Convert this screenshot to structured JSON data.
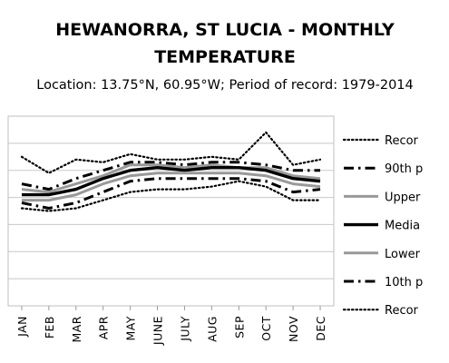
{
  "chart_data": {
    "type": "line",
    "title": "HEWANORRA, ST LUCIA - MONTHLY TEMPERATURE",
    "title_lines": [
      "HEWANORRA, ST LUCIA - MONTHLY",
      "TEMPERATURE"
    ],
    "subtitle": "Location: 13.75°N, 60.95°W; Period of record: 1979-2014",
    "categories": [
      "JAN",
      "FEB",
      "MAR",
      "APR",
      "MAY",
      "JUNE",
      "JULY",
      "AUG",
      "SEP",
      "OCT",
      "NOV",
      "DEC"
    ],
    "xlabel": "",
    "ylabel": "",
    "ylim": [
      0,
      7
    ],
    "yticks": [
      0,
      1,
      2,
      3,
      4,
      5,
      6,
      7
    ],
    "y_tick_labels_visible": false,
    "grid": "horizontal",
    "legend_position": "right",
    "series": [
      {
        "name": "Recor",
        "style": "dotted",
        "color": "#000000",
        "values": [
          5.5,
          4.9,
          5.4,
          5.3,
          5.6,
          5.4,
          5.4,
          5.5,
          5.4,
          6.4,
          5.2,
          5.4
        ]
      },
      {
        "name": "90th p",
        "style": "dashdot",
        "color": "#000000",
        "values": [
          4.5,
          4.3,
          4.7,
          5.0,
          5.3,
          5.3,
          5.2,
          5.3,
          5.3,
          5.2,
          5.0,
          5.0
        ]
      },
      {
        "name": "Upper",
        "style": "solid",
        "color": "#999999",
        "values": [
          4.3,
          4.2,
          4.5,
          4.8,
          5.2,
          5.2,
          5.1,
          5.2,
          5.1,
          5.1,
          4.8,
          4.7
        ]
      },
      {
        "name": "Media",
        "style": "solid-bold",
        "color": "#000000",
        "values": [
          4.1,
          4.1,
          4.3,
          4.7,
          5.0,
          5.1,
          5.0,
          5.1,
          5.1,
          5.0,
          4.7,
          4.6
        ]
      },
      {
        "name": "Lower",
        "style": "solid",
        "color": "#999999",
        "values": [
          3.9,
          3.9,
          4.1,
          4.5,
          4.8,
          4.9,
          4.9,
          4.9,
          4.9,
          4.8,
          4.5,
          4.4
        ]
      },
      {
        "name": "10th p",
        "style": "dashdot",
        "color": "#000000",
        "values": [
          3.8,
          3.6,
          3.8,
          4.2,
          4.6,
          4.7,
          4.7,
          4.7,
          4.7,
          4.6,
          4.2,
          4.3
        ]
      },
      {
        "name": "Recor",
        "style": "dotted",
        "color": "#000000",
        "values": [
          3.6,
          3.5,
          3.6,
          3.9,
          4.2,
          4.3,
          4.3,
          4.4,
          4.6,
          4.4,
          3.9,
          3.9
        ]
      }
    ]
  }
}
